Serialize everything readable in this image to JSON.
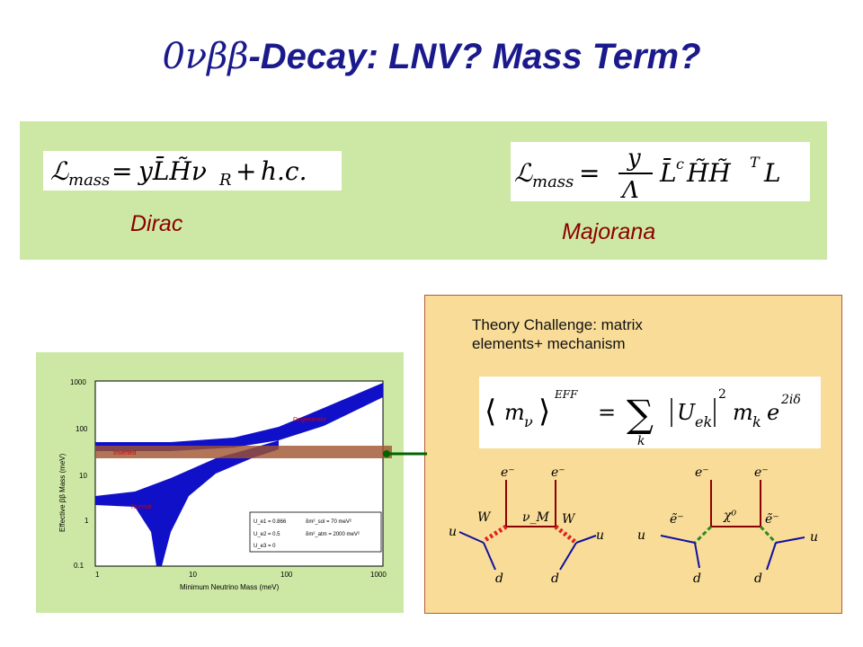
{
  "slide": {
    "title_greek": "0νββ",
    "title_rest": "-Decay: LNV? Mass Term?"
  },
  "mass_terms": {
    "dirac_label": "Dirac",
    "majorana_label": "Majorana"
  },
  "theory": {
    "challenge_line1": "Theory Challenge: matrix",
    "challenge_line2": "elements+ mechanism"
  },
  "plot": {
    "xlabel": "Minimum Neutrino Mass (meV)",
    "ylabel": "Effective ββ Mass (meV)",
    "x_ticks": [
      "1",
      "10",
      "100",
      "1000"
    ],
    "y_ticks": [
      "0.1",
      "1",
      "10",
      "100",
      "1000"
    ],
    "region_labels": [
      "Degenerate",
      "Inverted",
      "Normal"
    ],
    "legend": [
      "U_e1 = 0.866",
      "δm²_sol = 70 meV²",
      "U_e2 = 0.5",
      "δm²_atm = 2000 meV²",
      "U_e3 = 0"
    ],
    "colors": {
      "band": "#1010c8",
      "horizontal_band": "#a0522d",
      "label": "#cc0000"
    }
  },
  "diagrams": {
    "left": {
      "electrons": [
        "e⁻",
        "e⁻"
      ],
      "bosons": [
        "W",
        "W"
      ],
      "neutrino": "ν_M",
      "quarks_in": [
        "u",
        "u"
      ],
      "quarks_out": [
        "d",
        "d"
      ]
    },
    "right": {
      "electrons": [
        "e⁻",
        "e⁻"
      ],
      "neutralino": "χ⁰",
      "selectrons": [
        "ẽ⁻",
        "ẽ⁻"
      ],
      "quarks_in": [
        "u",
        "u"
      ],
      "quarks_out": [
        "d",
        "d"
      ]
    }
  },
  "colors": {
    "title": "#1a1a8c",
    "green_panel": "#cde8a5",
    "yellow_panel": "#f8dc98",
    "label_red": "#8b0000",
    "arrow_green": "#006400"
  }
}
